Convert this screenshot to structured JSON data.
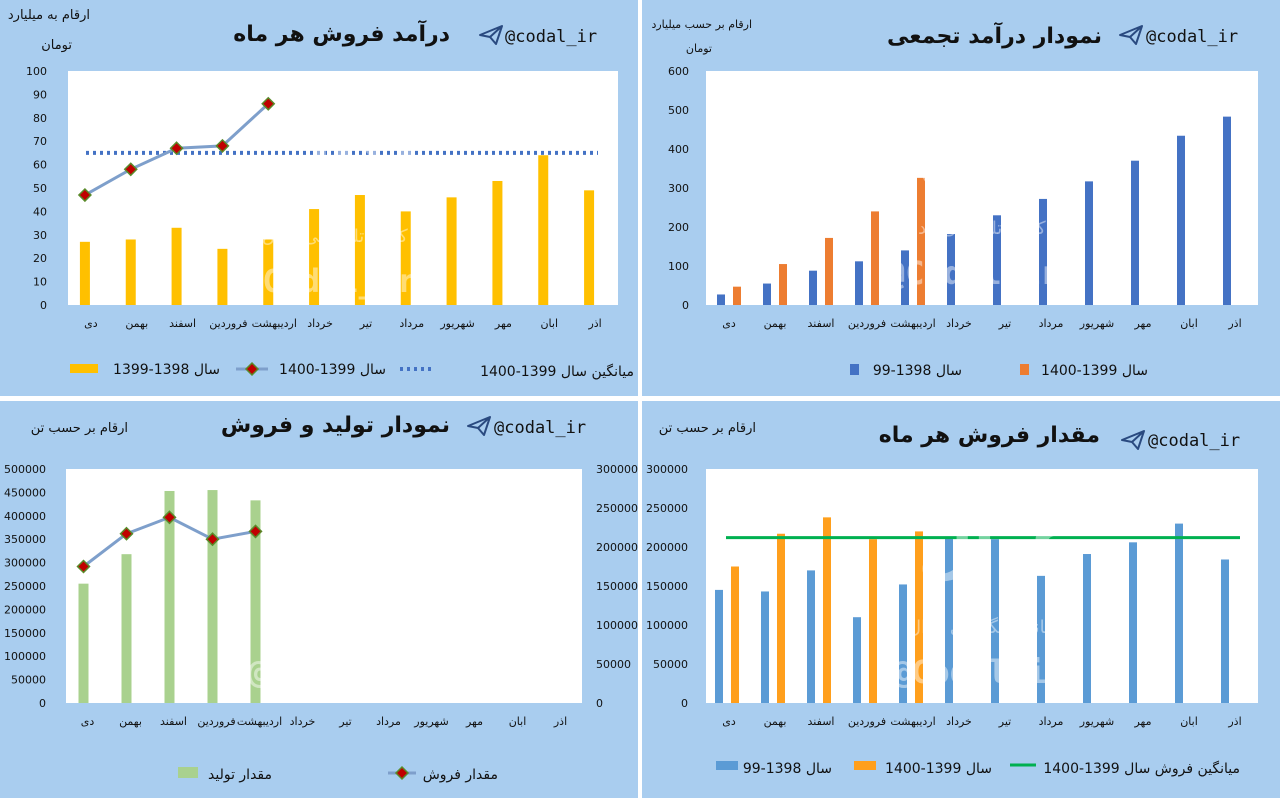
{
  "months": [
    "دی",
    "بهمن",
    "اسفند",
    "فروردین",
    "اردیبهشت",
    "خرداد",
    "تیر",
    "مرداد",
    "شهریور",
    "مهر",
    "ابان",
    "اذر"
  ],
  "handle": "@codal_ir",
  "watermark": {
    "logo": "کُدال",
    "channel": "کانال تلگرامی کدال",
    "handle": "@Codal_ir"
  },
  "chart_data": [
    {
      "type": "bar",
      "title": "درآمد فروش هر ماه",
      "unit_label": [
        "ارقام به میلیارد",
        "تومان"
      ],
      "ylim": [
        0,
        100
      ],
      "yticks": [
        0,
        10,
        20,
        30,
        40,
        50,
        60,
        70,
        80,
        90,
        100
      ],
      "grid": false,
      "legend_position": "bottom",
      "colors": {
        "bar": "#ffc000",
        "line": "#7e9fcb",
        "marker": "#c00000",
        "avg": "#4472c4"
      },
      "series": [
        {
          "name": "سال 1398-1399",
          "kind": "bar",
          "values": [
            27,
            28,
            33,
            24,
            28,
            41,
            47,
            40,
            46,
            53,
            64,
            49
          ]
        },
        {
          "name": "سال 1399-1400",
          "kind": "line",
          "values": [
            47,
            58,
            67,
            68,
            86
          ]
        },
        {
          "name": "میانگین سال 1399-1400",
          "kind": "dotted",
          "values": [
            65,
            65,
            65,
            65,
            65,
            65,
            65,
            65,
            65,
            65,
            65,
            65
          ]
        }
      ]
    },
    {
      "type": "bar",
      "title": "نمودار درآمد تجمعی",
      "unit_label": [
        "ارقام بر حسب میلیارد",
        "تومان"
      ],
      "ylim": [
        0,
        600
      ],
      "yticks": [
        0,
        100,
        200,
        300,
        400,
        500,
        600
      ],
      "grid": false,
      "legend_position": "bottom",
      "colors": {
        "s1": "#4472c4",
        "s2": "#ed7d31"
      },
      "series": [
        {
          "name": "سال 1398-99",
          "values": [
            27,
            55,
            88,
            112,
            140,
            182,
            230,
            272,
            317,
            370,
            434,
            483
          ]
        },
        {
          "name": "سال 1399-1400",
          "values": [
            47,
            105,
            172,
            240,
            326
          ]
        }
      ]
    },
    {
      "type": "bar",
      "title": "نمودار تولید و فروش",
      "unit_label": [
        "ارقام بر حسب تن"
      ],
      "ylim_left": [
        0,
        500000
      ],
      "yticks_left": [
        0,
        50000,
        100000,
        150000,
        200000,
        250000,
        300000,
        350000,
        400000,
        450000,
        500000
      ],
      "ylim_right": [
        0,
        300000
      ],
      "yticks_right": [
        0,
        50000,
        100000,
        150000,
        200000,
        250000,
        300000
      ],
      "grid": false,
      "legend_position": "bottom",
      "colors": {
        "bar": "#a9d18e",
        "line": "#7e9fcb",
        "marker": "#c00000"
      },
      "series": [
        {
          "name": "مقدار تولید",
          "kind": "bar",
          "axis": "left",
          "values": [
            255000,
            318000,
            453000,
            455000,
            433000
          ]
        },
        {
          "name": "مقدار فروش",
          "kind": "line",
          "axis": "right",
          "values": [
            175000,
            217000,
            238000,
            210000,
            220000
          ]
        }
      ]
    },
    {
      "type": "bar",
      "title": "مقدار فروش هر ماه",
      "unit_label": [
        "ارقام بر حسب تن"
      ],
      "ylim": [
        0,
        300000
      ],
      "yticks": [
        0,
        50000,
        100000,
        150000,
        200000,
        250000,
        300000
      ],
      "grid": false,
      "legend_position": "bottom",
      "colors": {
        "s1": "#5b9bd5",
        "s2": "#ff9f1c",
        "avg": "#00b050"
      },
      "series": [
        {
          "name": "سال 1398-99",
          "values": [
            145000,
            143000,
            170000,
            110000,
            152000,
            212000,
            210000,
            163000,
            191000,
            206000,
            230000,
            184000
          ]
        },
        {
          "name": "سال 1399-1400",
          "values": [
            175000,
            217000,
            238000,
            210000,
            220000
          ]
        },
        {
          "name": "میانگین فروش سال 1399-1400",
          "kind": "line",
          "values": [
            212000,
            212000,
            212000,
            212000,
            212000,
            212000,
            212000,
            212000,
            212000,
            212000,
            212000,
            212000
          ]
        }
      ]
    }
  ]
}
